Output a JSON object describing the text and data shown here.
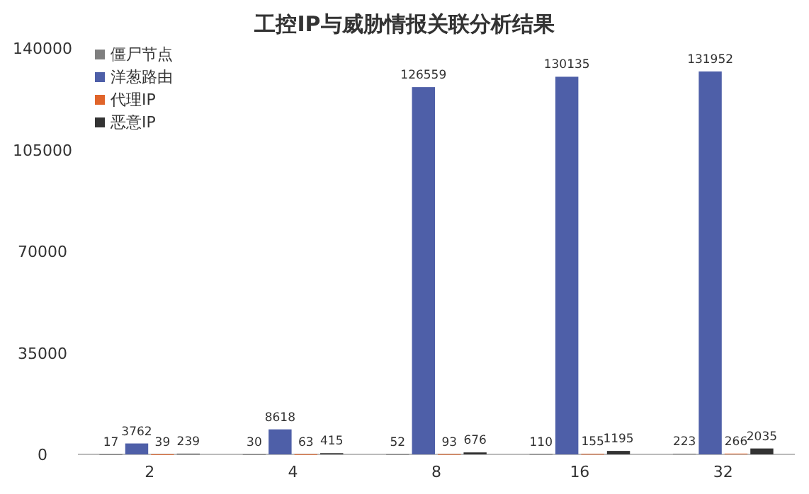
{
  "chart_data": {
    "type": "bar",
    "title": "工控IP与威胁情报关联分析结果",
    "categories": [
      "2",
      "4",
      "8",
      "16",
      "32"
    ],
    "series": [
      {
        "name": "僵尸节点",
        "color": "#7f7f7f",
        "values": [
          17,
          30,
          52,
          110,
          223
        ]
      },
      {
        "name": "洋葱路由",
        "color": "#4e5fa8",
        "values": [
          3762,
          8618,
          126559,
          130135,
          131952
        ]
      },
      {
        "name": "代理IP",
        "color": "#e0642a",
        "values": [
          39,
          63,
          93,
          155,
          266
        ]
      },
      {
        "name": "恶意IP",
        "color": "#333333",
        "values": [
          239,
          415,
          676,
          1195,
          2035
        ]
      }
    ],
    "ylim": [
      0,
      140000
    ],
    "yticks": [
      0,
      35000,
      70000,
      105000,
      140000
    ],
    "data_labels": true,
    "legend": "top left",
    "grid": false
  }
}
